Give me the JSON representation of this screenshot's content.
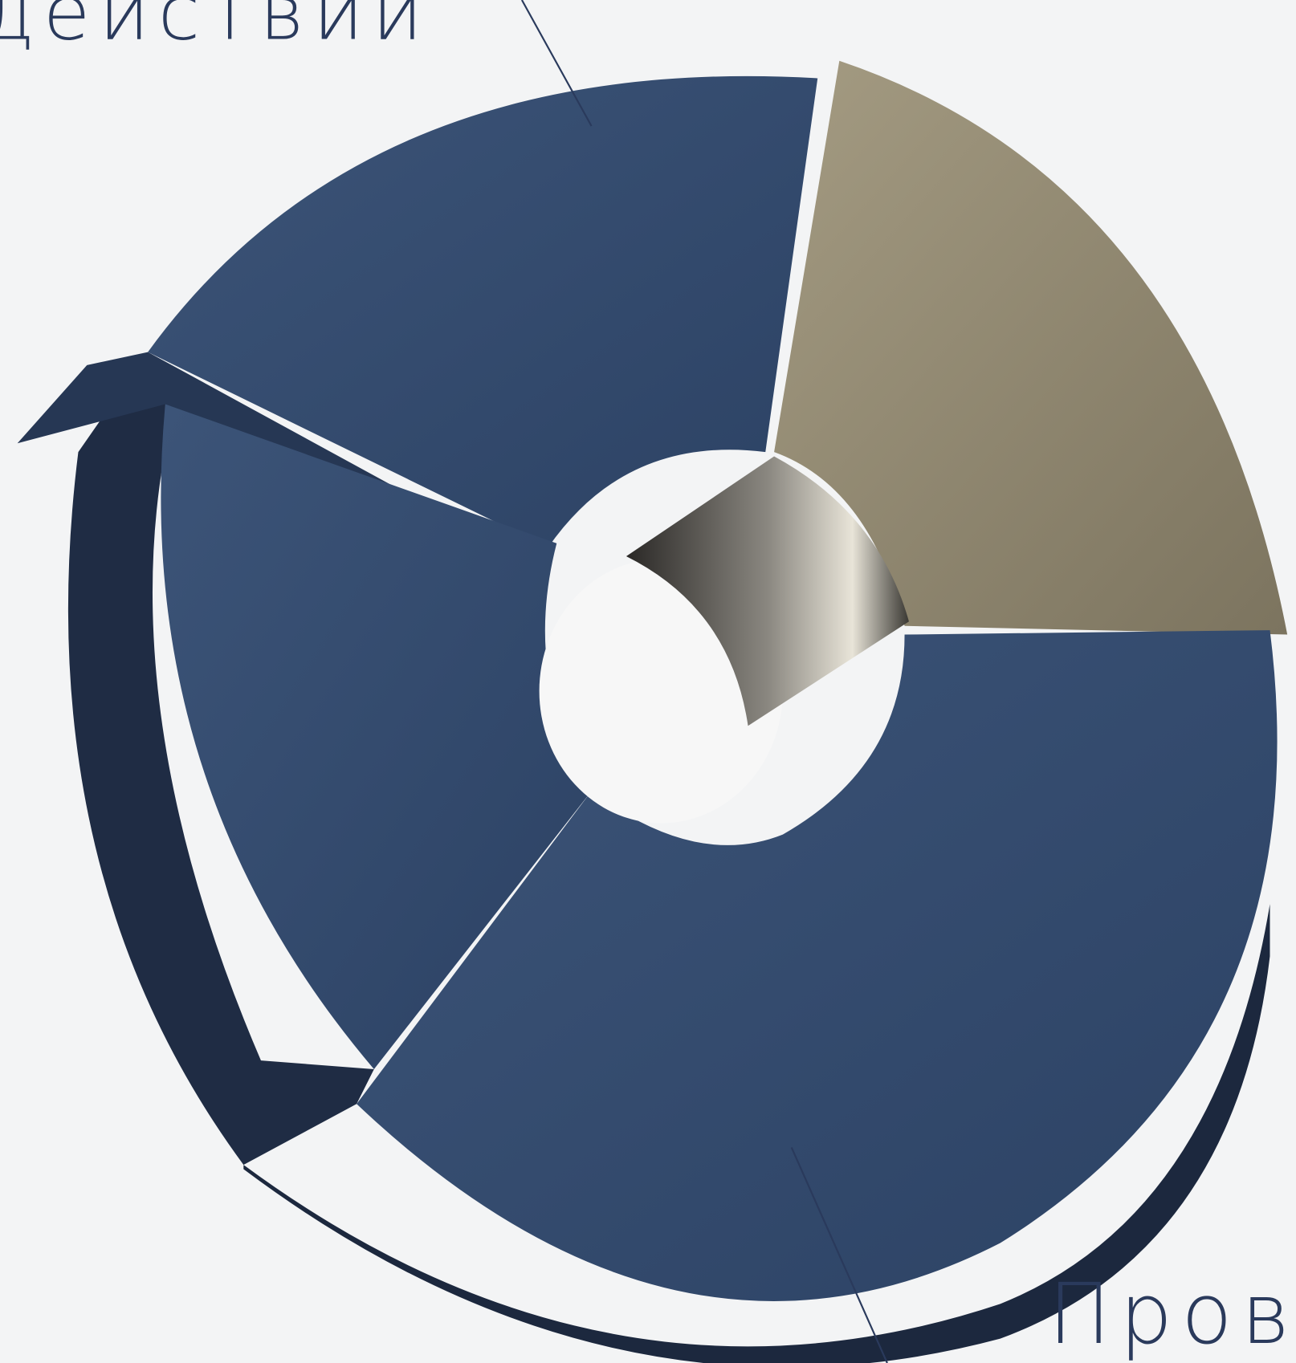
{
  "labels": {
    "top": "действий",
    "bottom": "Прове"
  }
}
